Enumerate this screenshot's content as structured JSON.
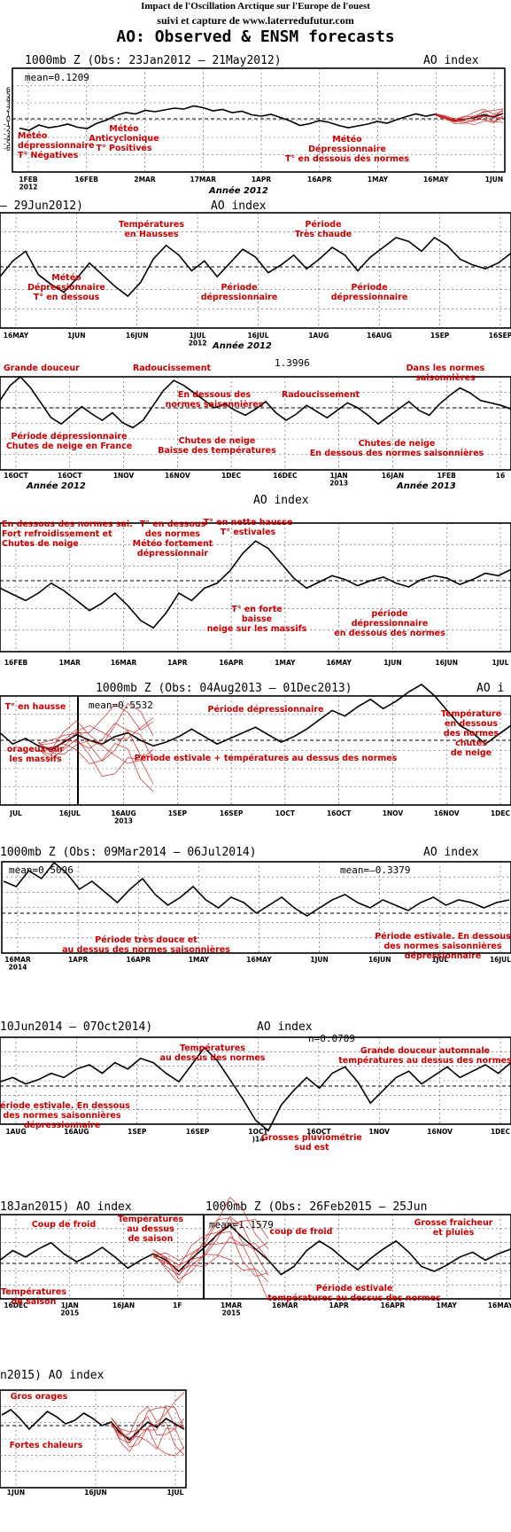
{
  "header": {
    "line1": "Impact de l'Oscillation Arctique sur l'Europe de l'ouest",
    "line2": "suivi et capture de www.laterredufutur.com",
    "line3": "AO: Observed & ENSM forecasts"
  },
  "colors": {
    "index_line": "#000000",
    "annotation": "#cc0000",
    "ensemble": "#cc2222",
    "grid": "#555555"
  },
  "chart_data": [
    {
      "type": "line",
      "title": "1000mb Z (Obs: 23Jan2012 – 21May2012)",
      "index_label": "AO index",
      "mean_label": "mean=0.1209",
      "y_ticks": [
        "6",
        "5",
        "4",
        "3",
        "2",
        "1",
        "0",
        "-1",
        "-2",
        "-3",
        "-4",
        "-5",
        "-6"
      ],
      "ylim": [
        -6,
        6
      ],
      "x_ticks": [
        "1FEB\n2012",
        "16FEB",
        "2MAR",
        "17MAR",
        "1APR",
        "16APR",
        "1MAY",
        "16MAY",
        "1JUN"
      ],
      "x_caption": "Année 2012",
      "x": [
        0,
        1,
        2,
        3,
        4,
        5,
        6,
        7,
        8,
        9,
        10,
        11,
        12,
        13,
        14,
        15,
        16,
        17,
        18,
        19,
        20,
        21,
        22,
        23,
        24,
        25,
        26,
        27,
        28,
        29,
        30,
        31,
        32,
        33,
        34,
        35,
        36,
        37,
        38,
        39,
        40,
        41,
        42,
        43,
        44,
        45,
        46,
        47,
        48,
        49,
        50
      ],
      "values": [
        -2.1,
        -2.6,
        -1.4,
        -2.0,
        -1.7,
        -1.2,
        -1.9,
        -2.2,
        -1.0,
        -0.3,
        0.8,
        1.4,
        1.1,
        1.9,
        1.6,
        2.0,
        2.4,
        2.2,
        2.9,
        2.5,
        1.8,
        2.1,
        1.4,
        1.7,
        0.9,
        0.6,
        1.0,
        0.3,
        -0.5,
        -1.5,
        -1.1,
        -0.4,
        -0.8,
        -1.5,
        -2.0,
        -1.6,
        -1.2,
        -0.6,
        -1.0,
        -0.2,
        0.5,
        1.1,
        0.6,
        1.0,
        0.3,
        -0.4,
        -0.1,
        0.2,
        0.9,
        0.4,
        1.2
      ],
      "ensemble": {
        "start": 43,
        "members": 8
      },
      "annotations": [
        "Météo\ndépressionnaire\nT° Négatives",
        "Météo\nAnticyclonique\nT° Positives",
        "Météo\nDépressionnaire\nT° en dessous des normes"
      ]
    },
    {
      "type": "line",
      "title": "– 29Jun2012)",
      "index_label": "AO index",
      "mean_label": "",
      "x_ticks": [
        "16MAY",
        "1JUN",
        "16JUN",
        "1JUL\n2012",
        "16JUL",
        "1AUG",
        "16AUG",
        "1SEP",
        "16SEP"
      ],
      "x_caption": "Année 2012",
      "x": [
        0,
        1,
        2,
        3,
        4,
        5,
        6,
        7,
        8,
        9,
        10,
        11,
        12,
        13,
        14,
        15,
        16,
        17,
        18,
        19,
        20,
        21,
        22,
        23,
        24,
        25,
        26,
        27,
        28,
        29,
        30,
        31,
        32,
        33,
        34,
        35,
        36,
        37,
        38,
        39,
        40
      ],
      "values": [
        -0.5,
        0.3,
        0.8,
        -0.4,
        -0.9,
        -1.3,
        -0.6,
        0.2,
        -0.4,
        -1.0,
        -1.5,
        -0.8,
        0.4,
        1.1,
        0.6,
        -0.2,
        0.3,
        -0.5,
        0.2,
        0.9,
        0.5,
        -0.3,
        0.1,
        0.6,
        -0.1,
        0.4,
        1.0,
        0.6,
        -0.2,
        0.5,
        1.0,
        1.5,
        1.3,
        0.8,
        1.5,
        1.1,
        0.4,
        0.1,
        -0.1,
        0.2,
        0.7
      ],
      "annotations": [
        "Températures\nen Hausses",
        "Période\nTrès chaude",
        "Météo\nDépressionnaire\nT° en dessous",
        "Période\ndépressionnaire",
        "Période\ndépressionnaire"
      ]
    },
    {
      "type": "line",
      "title": "",
      "index_label": "",
      "mean_label": "1.3996",
      "x_ticks": [
        "16OCT\n",
        "16OCT",
        "1NOV",
        "16NOV",
        "1DEC",
        "16DEC",
        "1JAN\n2013",
        "16JAN",
        "1FEB",
        "16"
      ],
      "x_caption_left": "Année 2012",
      "x_caption_right": "Année 2013",
      "x": [
        0,
        1,
        2,
        3,
        4,
        5,
        6,
        7,
        8,
        9,
        10,
        11,
        12,
        13,
        14,
        15,
        16,
        17,
        18,
        19,
        20,
        21,
        22,
        23,
        24,
        25,
        26,
        27,
        28,
        29,
        30,
        31,
        32,
        33,
        34,
        35,
        36,
        37,
        38,
        39,
        40,
        41,
        42,
        43,
        44,
        45,
        46,
        47,
        48,
        49,
        50
      ],
      "values": [
        0.6,
        1.8,
        2.5,
        1.6,
        0.4,
        -0.8,
        -1.3,
        -0.6,
        0.1,
        -0.5,
        -1.0,
        -0.4,
        -1.2,
        -1.6,
        -1.0,
        0.2,
        1.4,
        2.2,
        1.8,
        1.2,
        0.6,
        0.0,
        0.3,
        -0.2,
        -0.6,
        -0.1,
        0.5,
        -0.4,
        -1.0,
        -0.5,
        0.2,
        -0.3,
        -0.8,
        -0.2,
        0.4,
        0.0,
        -0.6,
        -1.3,
        -0.7,
        -0.1,
        0.5,
        -0.2,
        -0.6,
        0.3,
        1.0,
        1.6,
        1.2,
        0.6,
        0.4,
        0.2,
        -0.1
      ],
      "annotations": [
        "Grande douceur",
        "Radoucissement",
        "En dessous des\nnormes saisonnières",
        "Radoucissement",
        "Dans les normes\nsaisonnières",
        "Période dépressionnaire\nChutes de neige en France",
        "Chutes de neige\nBaisse des températures",
        "Chutes de neige\nEn dessous des normes saisonnières"
      ]
    },
    {
      "type": "line",
      "title": "",
      "index_label": "AO index",
      "mean_label": "",
      "x_ticks": [
        "16FEB",
        "1MAR",
        "16MAR",
        "1APR",
        "16APR",
        "1MAY",
        "16MAY",
        "1JUN",
        "16JUN",
        "1JUL"
      ],
      "x": [
        0,
        1,
        2,
        3,
        4,
        5,
        6,
        7,
        8,
        9,
        10,
        11,
        12,
        13,
        14,
        15,
        16,
        17,
        18,
        19,
        20,
        21,
        22,
        23,
        24,
        25,
        26,
        27,
        28,
        29,
        30,
        31,
        32,
        33,
        34,
        35,
        36,
        37,
        38,
        39,
        40
      ],
      "values": [
        -0.6,
        -1.1,
        -1.6,
        -1.0,
        -0.2,
        -0.8,
        -1.6,
        -2.4,
        -1.8,
        -1.0,
        -2.0,
        -3.2,
        -3.8,
        -2.6,
        -1.0,
        -1.6,
        -0.6,
        -0.2,
        0.8,
        2.2,
        3.2,
        2.6,
        1.4,
        0.2,
        -0.6,
        -0.1,
        0.4,
        0.1,
        -0.4,
        0.0,
        0.3,
        -0.2,
        -0.5,
        0.1,
        0.4,
        0.2,
        -0.3,
        0.1,
        0.6,
        0.4,
        0.9
      ],
      "annotations": [
        "En dessous des normes sai.\nFort refroidissement et\nChutes de neige",
        "T° en dessous\ndes normes\nMétéo fortement\ndépressionnair",
        "T° en nette hausse\nT° estivales",
        "T° en forte\nbaisse\nneige sur les massifs",
        "période\ndépressionnaire\nen dessous des normes"
      ]
    },
    {
      "type": "line",
      "title": "1000mb Z (Obs: 04Aug2013 – 01Dec2013)",
      "index_label": "AO i",
      "mean_label": "mean=0.5532",
      "x_ticks": [
        "JUL",
        "16JUL",
        "16AUG\n2013",
        "1SEP",
        "16SEP",
        "1OCT",
        "16OCT",
        "1NOV",
        "16NOV",
        "1DEC"
      ],
      "x": [
        0,
        1,
        2,
        3,
        4,
        5,
        6,
        7,
        8,
        9,
        10,
        11,
        12,
        13,
        14,
        15,
        16,
        17,
        18,
        19,
        20,
        21,
        22,
        23,
        24,
        25,
        26,
        27,
        28,
        29,
        30,
        31,
        32,
        33,
        34,
        35,
        36,
        37,
        38,
        39,
        40
      ],
      "values": [
        0.4,
        -0.2,
        0.1,
        -0.3,
        -0.5,
        -0.1,
        0.3,
        0.0,
        -0.2,
        0.2,
        0.4,
        0.0,
        -0.3,
        -0.1,
        0.2,
        0.6,
        0.2,
        -0.2,
        0.1,
        0.4,
        0.7,
        0.3,
        -0.1,
        0.2,
        0.6,
        1.1,
        1.6,
        1.3,
        1.8,
        2.2,
        1.7,
        2.1,
        2.6,
        3.0,
        2.4,
        1.6,
        0.8,
        0.4,
        -0.2,
        0.3,
        0.8
      ],
      "ensemble": {
        "start": 3,
        "members": 8
      },
      "annotations": [
        "T° en hausse",
        "orageux sur\nles massifs",
        "Période dépressionnaire",
        "Période estivale + températures au dessus des normes",
        "Température\nen dessous\ndes normes\nchutes\nde neige"
      ]
    },
    {
      "type": "line",
      "title": "1000mb Z (Obs: 09Mar2014 – 06Jul2014)",
      "index_label": "AO index",
      "mean_label": "mean=0.5096",
      "mean_label_2": "mean=–0.3379",
      "x_ticks": [
        "16MAR\n2014",
        "1APR",
        "16APR",
        "1MAY",
        "16MAY",
        "1JUN",
        "16JUN",
        "1JUL",
        "16JUL"
      ],
      "x": [
        0,
        1,
        2,
        3,
        4,
        5,
        6,
        7,
        8,
        9,
        10,
        11,
        12,
        13,
        14,
        15,
        16,
        17,
        18,
        19,
        20,
        21,
        22,
        23,
        24,
        25,
        26,
        27,
        28,
        29,
        30,
        31,
        32,
        33,
        34,
        35,
        36,
        37,
        38,
        39,
        40
      ],
      "values": [
        1.2,
        1.0,
        1.6,
        1.3,
        1.9,
        1.5,
        0.9,
        1.2,
        0.8,
        0.4,
        0.9,
        1.3,
        0.7,
        0.3,
        0.6,
        1.0,
        0.5,
        0.2,
        0.6,
        0.4,
        0.0,
        0.3,
        0.6,
        0.2,
        -0.1,
        0.2,
        0.5,
        0.7,
        0.4,
        0.2,
        0.5,
        0.3,
        0.1,
        0.4,
        0.6,
        0.3,
        0.5,
        0.4,
        0.2,
        0.4,
        0.5
      ],
      "annotations": [
        "Période très douce et\nau dessus des normes saisonnières",
        "Période estivale. En dessous\ndes normes saisonnières\ndépressionnaire"
      ]
    },
    {
      "type": "line",
      "title": "10Jun2014 – 07Oct2014)",
      "index_label": "AO index",
      "mean_label": "n=0.0709",
      "x_ticks": [
        "1AUG",
        "16AUG",
        "1SEP",
        "16SEP",
        "1OCT\n)14",
        "16OCT",
        "1NOV",
        "16NOV",
        "1DEC"
      ],
      "x": [
        0,
        1,
        2,
        3,
        4,
        5,
        6,
        7,
        8,
        9,
        10,
        11,
        12,
        13,
        14,
        15,
        16,
        17,
        18,
        19,
        20,
        21,
        22,
        23,
        24,
        25,
        26,
        27,
        28,
        29,
        30,
        31,
        32,
        33,
        34,
        35,
        36,
        37,
        38,
        39,
        40
      ],
      "values": [
        0.2,
        0.4,
        0.1,
        0.3,
        0.6,
        0.4,
        0.8,
        1.0,
        0.6,
        1.1,
        0.8,
        1.3,
        1.1,
        0.6,
        0.2,
        1.0,
        1.8,
        1.2,
        0.3,
        -0.6,
        -1.6,
        -2.1,
        -0.9,
        -0.2,
        0.4,
        -0.1,
        0.6,
        0.9,
        0.2,
        -0.8,
        -0.2,
        0.4,
        0.7,
        0.1,
        0.5,
        0.9,
        0.4,
        0.7,
        1.0,
        0.6,
        1.1
      ],
      "annotations": [
        "Températures\nau dessus des normes",
        "Grande douceur automnale\ntempératures au dessus des normes",
        "Période estivale. En dessous\ndes normes saisonnières\ndépressionnaire",
        "Grosses pluviométrie\nsud est"
      ]
    },
    {
      "type": "line",
      "title": "18Jan2015)    AO index",
      "title_2": "1000mb Z (Obs: 26Feb2015 – 25Jun",
      "index_label": "",
      "mean_label": "mean=1.1579",
      "x_ticks": [
        "16DEC",
        "1JAN\n2015",
        "16JAN",
        "1F",
        "1MAR\n2015",
        "16MAR",
        "1APR",
        "16APR",
        "1MAY",
        "16MAY"
      ],
      "x": [
        0,
        1,
        2,
        3,
        4,
        5,
        6,
        7,
        8,
        9,
        10,
        11,
        12,
        13,
        14,
        15,
        16,
        17,
        18,
        19,
        20,
        21,
        22,
        23,
        24,
        25,
        26,
        27,
        28,
        29,
        30,
        31,
        32,
        33,
        34,
        35,
        36,
        37,
        38,
        39,
        40
      ],
      "values": [
        0.2,
        0.8,
        0.4,
        0.9,
        1.3,
        0.6,
        0.1,
        0.5,
        1.0,
        0.4,
        -0.3,
        0.2,
        0.6,
        0.2,
        -0.5,
        0.3,
        1.0,
        1.8,
        2.4,
        1.6,
        0.9,
        0.2,
        -0.7,
        -0.2,
        0.8,
        1.4,
        0.9,
        0.2,
        -0.4,
        0.3,
        0.9,
        1.4,
        0.7,
        -0.2,
        -0.5,
        -0.1,
        0.4,
        0.7,
        0.2,
        0.6,
        0.9
      ],
      "ensemble": {
        "start": 12,
        "members": 8
      },
      "annotations": [
        "Coup de froid",
        "Températures\nau dessus\nde saison",
        "coup de froid",
        "Grosse fraicheur\net pluies",
        "Températures\nde saison",
        "Période estivale\ntempératures au dessus des normes"
      ]
    },
    {
      "type": "line",
      "title": "n2015)    AO index",
      "index_label": "",
      "mean_label": "",
      "x_ticks": [
        "1JUN",
        "16JUN",
        "1JUL"
      ],
      "x": [
        0,
        1,
        2,
        3,
        4,
        5,
        6,
        7,
        8,
        9,
        10,
        11,
        12,
        13,
        14,
        15,
        16,
        17,
        18,
        19,
        20
      ],
      "values": [
        0.6,
        0.9,
        0.4,
        -0.2,
        0.3,
        0.8,
        0.5,
        0.1,
        0.3,
        0.7,
        0.4,
        0.0,
        0.2,
        -0.4,
        -0.8,
        -0.3,
        0.2,
        -0.1,
        0.4,
        0.1,
        -0.2
      ],
      "ensemble": {
        "start": 12,
        "members": 7
      },
      "annotations": [
        "Gros orages",
        "Fortes chaleurs"
      ]
    }
  ]
}
